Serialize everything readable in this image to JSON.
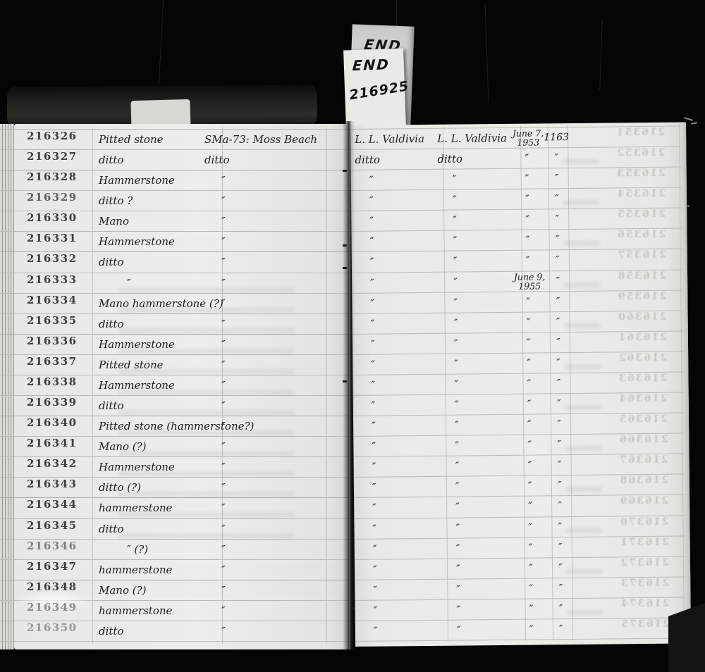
{
  "photo": {
    "background_color": "#050505",
    "paper_color": "#eaeae7",
    "ink_color": "#1c1c1a",
    "rule_line_color": "#b9b9b5"
  },
  "tabs": {
    "back_label": "END",
    "front_label": "END",
    "front_number": "216925"
  },
  "ledger": {
    "rows": [
      {
        "no": "216326",
        "object": "Pitted stone",
        "site": "SMa-73: Moss Beach",
        "collector": "L. L. Valdivia",
        "collector2": "L. L. Valdivia",
        "date": [
          "June 7,",
          "1953"
        ],
        "acc": "1163"
      },
      {
        "no": "216327",
        "object": "ditto",
        "site": "ditto",
        "collector": "ditto",
        "collector2": "ditto",
        "date": "″",
        "acc": "″"
      },
      {
        "no": "216328",
        "object": "Hammerstone",
        "site": "″",
        "collector": "″",
        "collector2": "″",
        "date": "″",
        "acc": "″"
      },
      {
        "no": "216329",
        "object": "ditto ?",
        "site": "″",
        "collector": "″",
        "collector2": "″",
        "date": "″",
        "acc": "″"
      },
      {
        "no": "216330",
        "object": "Mano",
        "site": "″",
        "collector": "″",
        "collector2": "″",
        "date": "″",
        "acc": "″"
      },
      {
        "no": "216331",
        "object": "Hammerstone",
        "site": "″",
        "collector": "″",
        "collector2": "″",
        "date": "″",
        "acc": "″"
      },
      {
        "no": "216332",
        "object": "ditto",
        "site": "″",
        "collector": "″",
        "collector2": "″",
        "date": "″",
        "acc": "″"
      },
      {
        "no": "216333",
        "object": "″",
        "site": "″",
        "collector": "″",
        "collector2": "″",
        "date": [
          "June 9,",
          "1955"
        ],
        "acc": "″"
      },
      {
        "no": "216334",
        "object": "Mano hammerstone (?)",
        "site": "″",
        "collector": "″",
        "collector2": "″",
        "date": "″",
        "acc": "″"
      },
      {
        "no": "216335",
        "object": "ditto",
        "site": "″",
        "collector": "″",
        "collector2": "″",
        "date": "″",
        "acc": "″"
      },
      {
        "no": "216336",
        "object": "Hammerstone",
        "site": "″",
        "collector": "″",
        "collector2": "″",
        "date": "″",
        "acc": "″"
      },
      {
        "no": "216337",
        "object": "Pitted stone",
        "site": "″",
        "collector": "″",
        "collector2": "″",
        "date": "″",
        "acc": "″"
      },
      {
        "no": "216338",
        "object": "Hammerstone",
        "site": "″",
        "collector": "″",
        "collector2": "″",
        "date": "″",
        "acc": "″"
      },
      {
        "no": "216339",
        "object": "ditto",
        "site": "″",
        "collector": "″",
        "collector2": "″",
        "date": "″",
        "acc": "″"
      },
      {
        "no": "216340",
        "object": "Pitted stone (hammerstone?)",
        "site": "″",
        "collector": "″",
        "collector2": "″",
        "date": "″",
        "acc": "″"
      },
      {
        "no": "216341",
        "object": "Mano (?)",
        "site": "″",
        "collector": "″",
        "collector2": "″",
        "date": "″",
        "acc": "″"
      },
      {
        "no": "216342",
        "object": "Hammerstone",
        "site": "″",
        "collector": "″",
        "collector2": "″",
        "date": "″",
        "acc": "″"
      },
      {
        "no": "216343",
        "object": "ditto (?)",
        "site": "″",
        "collector": "″",
        "collector2": "″",
        "date": "″",
        "acc": "″"
      },
      {
        "no": "216344",
        "object": "hammerstone",
        "site": "″",
        "collector": "″",
        "collector2": "″",
        "date": "″",
        "acc": "″"
      },
      {
        "no": "216345",
        "object": "ditto",
        "site": "″",
        "collector": "″",
        "collector2": "″",
        "date": "″",
        "acc": "″"
      },
      {
        "no": "216346",
        "object": "″ (?)",
        "site": "″",
        "collector": "″",
        "collector2": "″",
        "date": "″",
        "acc": "″"
      },
      {
        "no": "216347",
        "object": "hammerstone",
        "site": "″",
        "collector": "″",
        "collector2": "″",
        "date": "″",
        "acc": "″"
      },
      {
        "no": "216348",
        "object": "Mano (?)",
        "site": "″",
        "collector": "″",
        "collector2": "″",
        "date": "″",
        "acc": "″"
      },
      {
        "no": "216349",
        "object": "hammerstone",
        "site": "″",
        "collector": "″",
        "collector2": "″",
        "date": "″",
        "acc": "″"
      },
      {
        "no": "216350",
        "object": "ditto",
        "site": "″",
        "collector": "″",
        "collector2": "″",
        "date": "″",
        "acc": "″"
      }
    ],
    "bleedthrough_numbers": [
      "216351",
      "216352",
      "216353",
      "216354",
      "216355",
      "216356",
      "216357",
      "216358",
      "216359",
      "216360",
      "216361",
      "216362",
      "216363",
      "216364",
      "216365",
      "216366",
      "216367",
      "216368",
      "216369",
      "216370",
      "216371",
      "216372",
      "216373",
      "216374",
      "216375"
    ]
  }
}
